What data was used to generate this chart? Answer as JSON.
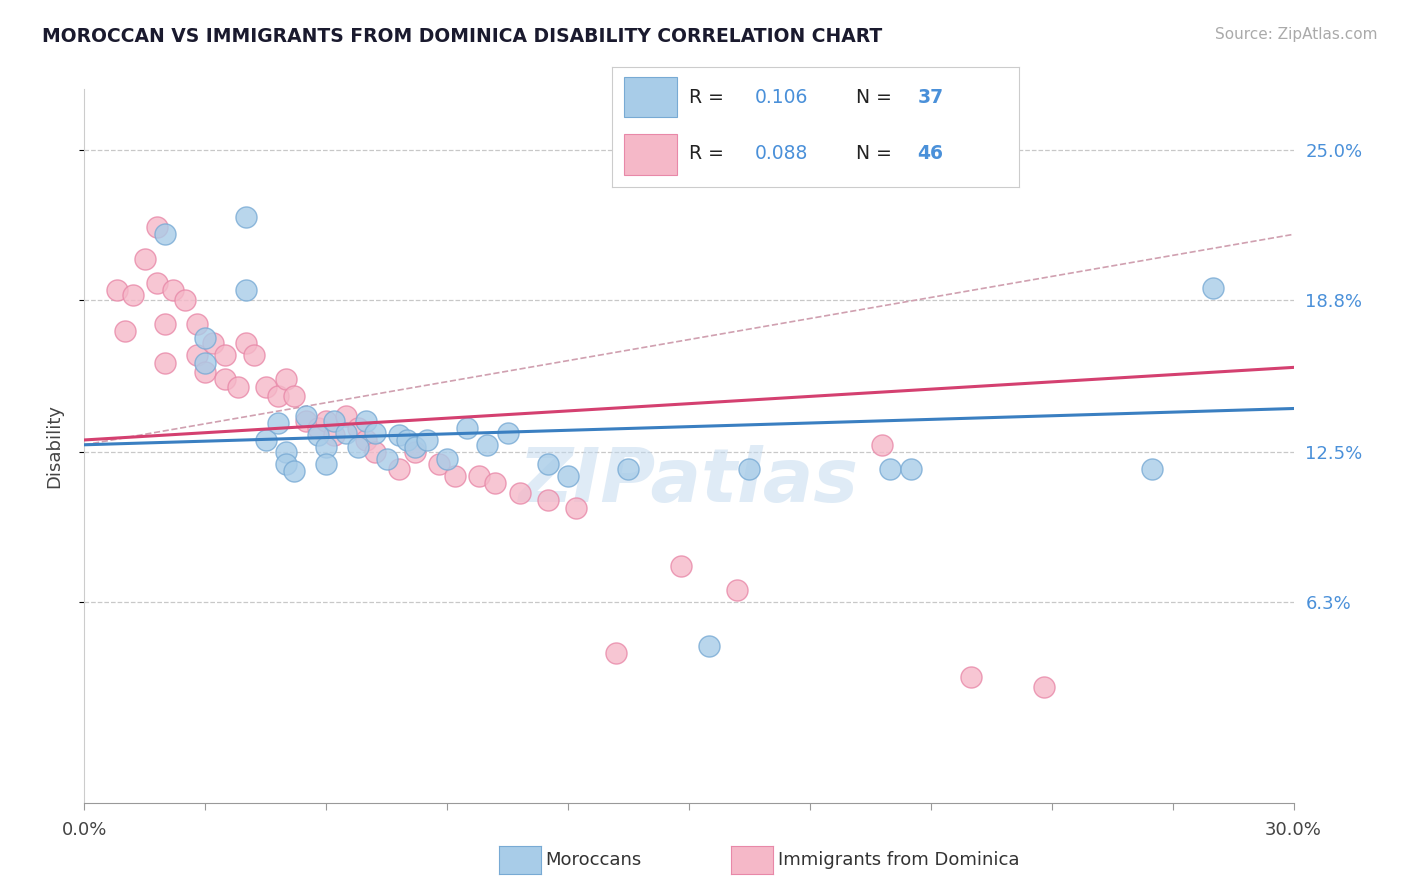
{
  "title": "MOROCCAN VS IMMIGRANTS FROM DOMINICA DISABILITY CORRELATION CHART",
  "source": "Source: ZipAtlas.com",
  "ylabel": "Disability",
  "xlim": [
    0.0,
    0.3
  ],
  "ylim": [
    -0.02,
    0.275
  ],
  "y_tick_values": [
    0.063,
    0.125,
    0.188,
    0.25
  ],
  "y_tick_labels": [
    "6.3%",
    "12.5%",
    "18.8%",
    "25.0%"
  ],
  "x_tick_values": [
    0.0,
    0.03,
    0.06,
    0.09,
    0.12,
    0.15,
    0.18,
    0.21,
    0.24,
    0.27,
    0.3
  ],
  "x_label_values": [
    0.0,
    0.3
  ],
  "x_label_texts": [
    "0.0%",
    "30.0%"
  ],
  "moroccans_color": "#a8cce8",
  "moroccans_edge": "#78aad4",
  "dominica_color": "#f5b8c8",
  "dominica_edge": "#e888a8",
  "trend_blue_color": "#3a7fc1",
  "trend_pink_color": "#d44070",
  "trend_dash_color": "#d0a0b0",
  "label_color": "#4a90d9",
  "title_color": "#1a1a2e",
  "R_moroccan": 0.106,
  "N_moroccan": 37,
  "R_dominica": 0.088,
  "N_dominica": 46,
  "watermark_text": "ZIPatlas",
  "moroccans_x": [
    0.02,
    0.03,
    0.03,
    0.04,
    0.04,
    0.045,
    0.048,
    0.05,
    0.05,
    0.052,
    0.055,
    0.058,
    0.06,
    0.06,
    0.062,
    0.065,
    0.068,
    0.07,
    0.072,
    0.075,
    0.078,
    0.08,
    0.082,
    0.085,
    0.09,
    0.095,
    0.1,
    0.105,
    0.115,
    0.12,
    0.135,
    0.155,
    0.165,
    0.2,
    0.205,
    0.265,
    0.28
  ],
  "moroccans_y": [
    0.215,
    0.172,
    0.162,
    0.222,
    0.192,
    0.13,
    0.137,
    0.125,
    0.12,
    0.117,
    0.14,
    0.132,
    0.127,
    0.12,
    0.138,
    0.133,
    0.127,
    0.138,
    0.133,
    0.122,
    0.132,
    0.13,
    0.127,
    0.13,
    0.122,
    0.135,
    0.128,
    0.133,
    0.12,
    0.115,
    0.118,
    0.045,
    0.118,
    0.118,
    0.118,
    0.118,
    0.193
  ],
  "dominica_x": [
    0.008,
    0.01,
    0.012,
    0.015,
    0.018,
    0.018,
    0.02,
    0.02,
    0.022,
    0.025,
    0.028,
    0.028,
    0.03,
    0.032,
    0.035,
    0.035,
    0.038,
    0.04,
    0.042,
    0.045,
    0.048,
    0.05,
    0.052,
    0.055,
    0.058,
    0.06,
    0.062,
    0.065,
    0.068,
    0.07,
    0.072,
    0.078,
    0.082,
    0.088,
    0.092,
    0.098,
    0.102,
    0.108,
    0.115,
    0.122,
    0.132,
    0.148,
    0.162,
    0.198,
    0.22,
    0.238
  ],
  "dominica_y": [
    0.192,
    0.175,
    0.19,
    0.205,
    0.218,
    0.195,
    0.178,
    0.162,
    0.192,
    0.188,
    0.178,
    0.165,
    0.158,
    0.17,
    0.165,
    0.155,
    0.152,
    0.17,
    0.165,
    0.152,
    0.148,
    0.155,
    0.148,
    0.138,
    0.135,
    0.138,
    0.132,
    0.14,
    0.135,
    0.13,
    0.125,
    0.118,
    0.125,
    0.12,
    0.115,
    0.115,
    0.112,
    0.108,
    0.105,
    0.102,
    0.042,
    0.078,
    0.068,
    0.128,
    0.032,
    0.028
  ]
}
